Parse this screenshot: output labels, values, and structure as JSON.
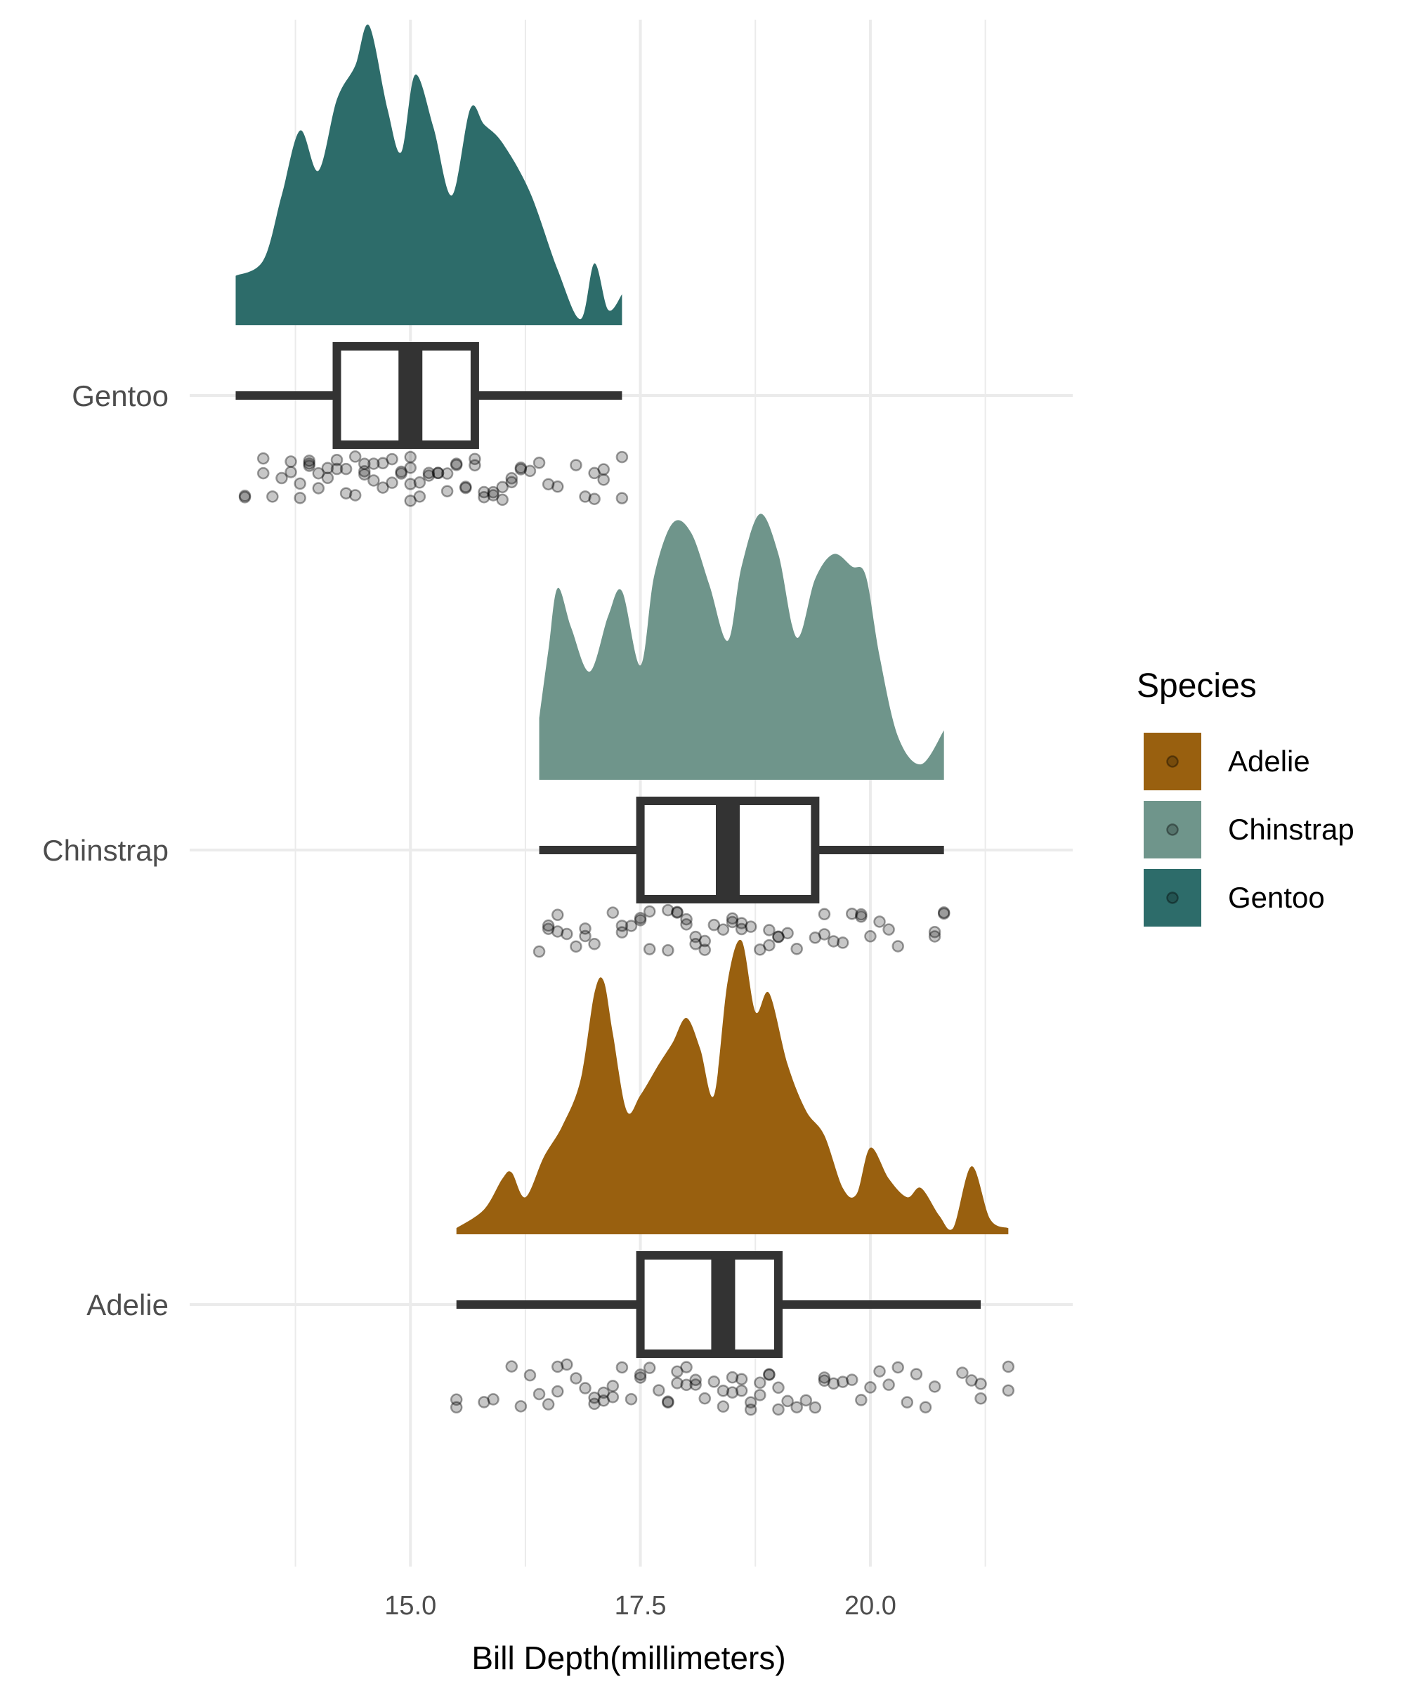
{
  "chart_data": {
    "type": "raincloud",
    "xlabel": "Bill Depth(millimeters)",
    "ylabel": "",
    "xlim": [
      12.6,
      22.2
    ],
    "x_ticks": [
      15.0,
      17.5,
      20.0
    ],
    "x_tick_labels": [
      "15.0",
      "17.5",
      "20.0"
    ],
    "grid": true,
    "legend": {
      "title": "Species",
      "placement": "right",
      "entries": [
        "Adelie",
        "Chinstrap",
        "Gentoo"
      ]
    },
    "colors": {
      "Adelie": "#99600f",
      "Chinstrap": "#6f958b",
      "Gentoo": "#2d6c6a",
      "box": "#333333",
      "grid": "#ebebeb",
      "point": "#000000"
    },
    "categories": [
      "Gentoo",
      "Chinstrap",
      "Adelie"
    ],
    "series": [
      {
        "name": "Gentoo",
        "box": {
          "min": 13.1,
          "q1": 14.2,
          "median": 15.0,
          "q3": 15.7,
          "max": 17.3
        },
        "density": {
          "x": [
            13.1,
            13.4,
            13.6,
            13.8,
            14.0,
            14.2,
            14.4,
            14.55,
            14.75,
            14.9,
            15.05,
            15.25,
            15.45,
            15.65,
            15.8,
            16.0,
            16.3,
            16.6,
            16.85,
            17.0,
            17.15,
            17.3
          ],
          "y": [
            0.16,
            0.21,
            0.42,
            0.63,
            0.5,
            0.73,
            0.84,
            0.97,
            0.7,
            0.56,
            0.81,
            0.64,
            0.42,
            0.7,
            0.65,
            0.59,
            0.43,
            0.18,
            0.02,
            0.2,
            0.05,
            0.1
          ]
        },
        "points": [
          {
            "x": 13.2,
            "y": 13.2
          },
          {
            "x": 13.4,
            "y": 13.4
          },
          {
            "x": 13.5,
            "y": 13.7
          },
          {
            "x": 13.7,
            "y": 13.6
          },
          {
            "x": 13.8,
            "y": 13.9
          },
          {
            "x": 13.9,
            "y": 13.8
          },
          {
            "x": 14.0,
            "y": 13.9
          },
          {
            "x": 14.1,
            "y": 14.1
          },
          {
            "x": 14.2,
            "y": 14.0
          },
          {
            "x": 14.3,
            "y": 14.2
          },
          {
            "x": 14.4,
            "y": 14.4
          },
          {
            "x": 14.5,
            "y": 14.3
          },
          {
            "x": 14.5,
            "y": 14.6
          },
          {
            "x": 14.6,
            "y": 14.5
          },
          {
            "x": 14.7,
            "y": 14.8
          },
          {
            "x": 14.8,
            "y": 14.7
          },
          {
            "x": 14.9,
            "y": 15.0
          },
          {
            "x": 15.0,
            "y": 14.9
          },
          {
            "x": 15.0,
            "y": 15.1
          },
          {
            "x": 15.1,
            "y": 15.0
          },
          {
            "x": 15.2,
            "y": 15.2
          },
          {
            "x": 15.3,
            "y": 15.4
          },
          {
            "x": 15.4,
            "y": 15.3
          },
          {
            "x": 15.5,
            "y": 15.5
          },
          {
            "x": 15.6,
            "y": 15.7
          },
          {
            "x": 15.7,
            "y": 15.6
          },
          {
            "x": 15.8,
            "y": 15.8
          },
          {
            "x": 15.9,
            "y": 15.9
          },
          {
            "x": 16.0,
            "y": 16.1
          },
          {
            "x": 16.1,
            "y": 16.0
          },
          {
            "x": 16.2,
            "y": 16.2
          },
          {
            "x": 16.4,
            "y": 16.3
          },
          {
            "x": 16.5,
            "y": 16.6
          },
          {
            "x": 16.8,
            "y": 16.9
          },
          {
            "x": 17.0,
            "y": 17.1
          },
          {
            "x": 17.1,
            "y": 17.0
          },
          {
            "x": 17.3,
            "y": 17.3
          }
        ]
      },
      {
        "name": "Chinstrap",
        "box": {
          "min": 16.4,
          "q1": 17.5,
          "median": 18.45,
          "q3": 19.4,
          "max": 20.8
        },
        "density": {
          "x": [
            16.4,
            16.5,
            16.6,
            16.75,
            16.95,
            17.15,
            17.3,
            17.5,
            17.65,
            17.85,
            18.05,
            18.25,
            18.45,
            18.6,
            18.8,
            19.0,
            19.2,
            19.4,
            19.6,
            19.8,
            19.95,
            20.1,
            20.3,
            20.55,
            20.8
          ],
          "y": [
            0.2,
            0.42,
            0.62,
            0.49,
            0.35,
            0.53,
            0.61,
            0.37,
            0.66,
            0.83,
            0.8,
            0.63,
            0.45,
            0.69,
            0.86,
            0.73,
            0.46,
            0.65,
            0.73,
            0.69,
            0.66,
            0.4,
            0.14,
            0.05,
            0.16
          ]
        },
        "points": [
          {
            "x": 16.4,
            "y": 16.5
          },
          {
            "x": 16.5,
            "y": 16.6
          },
          {
            "x": 16.6,
            "y": 16.7
          },
          {
            "x": 16.8,
            "y": 16.9
          },
          {
            "x": 17.0,
            "y": 16.9
          },
          {
            "x": 17.2,
            "y": 17.3
          },
          {
            "x": 17.3,
            "y": 17.4
          },
          {
            "x": 17.5,
            "y": 17.6
          },
          {
            "x": 17.6,
            "y": 17.5
          },
          {
            "x": 17.8,
            "y": 17.8
          },
          {
            "x": 17.9,
            "y": 18.0
          },
          {
            "x": 18.0,
            "y": 17.9
          },
          {
            "x": 18.1,
            "y": 18.2
          },
          {
            "x": 18.2,
            "y": 18.1
          },
          {
            "x": 18.4,
            "y": 18.3
          },
          {
            "x": 18.5,
            "y": 18.6
          },
          {
            "x": 18.6,
            "y": 18.5
          },
          {
            "x": 18.8,
            "y": 18.7
          },
          {
            "x": 18.9,
            "y": 19.0
          },
          {
            "x": 19.0,
            "y": 18.9
          },
          {
            "x": 19.2,
            "y": 19.1
          },
          {
            "x": 19.4,
            "y": 19.5
          },
          {
            "x": 19.5,
            "y": 19.6
          },
          {
            "x": 19.7,
            "y": 19.8
          },
          {
            "x": 19.9,
            "y": 19.9
          },
          {
            "x": 20.0,
            "y": 20.1
          },
          {
            "x": 20.3,
            "y": 20.2
          },
          {
            "x": 20.7,
            "y": 20.8
          },
          {
            "x": 20.8,
            "y": 20.7
          }
        ]
      },
      {
        "name": "Adelie",
        "box": {
          "min": 15.5,
          "q1": 17.5,
          "median": 18.4,
          "q3": 19.0,
          "max": 21.2
        },
        "density": {
          "x": [
            15.5,
            15.8,
            16.0,
            16.1,
            16.25,
            16.45,
            16.65,
            16.85,
            17.0,
            17.1,
            17.2,
            17.35,
            17.5,
            17.7,
            17.85,
            18.0,
            18.15,
            18.3,
            18.45,
            18.6,
            18.75,
            18.9,
            19.1,
            19.3,
            19.5,
            19.7,
            19.85,
            20.0,
            20.2,
            20.4,
            20.55,
            20.75,
            20.9,
            21.1,
            21.3,
            21.5
          ],
          "y": [
            0.02,
            0.08,
            0.18,
            0.2,
            0.12,
            0.25,
            0.35,
            0.5,
            0.78,
            0.82,
            0.65,
            0.4,
            0.45,
            0.55,
            0.62,
            0.7,
            0.6,
            0.45,
            0.82,
            0.95,
            0.72,
            0.78,
            0.55,
            0.4,
            0.32,
            0.15,
            0.13,
            0.28,
            0.18,
            0.12,
            0.15,
            0.06,
            0.02,
            0.22,
            0.05,
            0.02
          ]
        },
        "points": [
          {
            "x": 15.5,
            "y": 15.5
          },
          {
            "x": 15.9,
            "y": 15.8
          },
          {
            "x": 16.1,
            "y": 16.2
          },
          {
            "x": 16.3,
            "y": 16.4
          },
          {
            "x": 16.5,
            "y": 16.6
          },
          {
            "x": 16.7,
            "y": 16.6
          },
          {
            "x": 16.8,
            "y": 16.9
          },
          {
            "x": 17.0,
            "y": 17.1
          },
          {
            "x": 17.1,
            "y": 17.0
          },
          {
            "x": 17.2,
            "y": 17.2
          },
          {
            "x": 17.3,
            "y": 17.4
          },
          {
            "x": 17.5,
            "y": 17.5
          },
          {
            "x": 17.6,
            "y": 17.7
          },
          {
            "x": 17.8,
            "y": 17.8
          },
          {
            "x": 17.9,
            "y": 18.0
          },
          {
            "x": 18.0,
            "y": 17.9
          },
          {
            "x": 18.1,
            "y": 18.1
          },
          {
            "x": 18.2,
            "y": 18.3
          },
          {
            "x": 18.4,
            "y": 18.4
          },
          {
            "x": 18.5,
            "y": 18.5
          },
          {
            "x": 18.6,
            "y": 18.6
          },
          {
            "x": 18.7,
            "y": 18.8
          },
          {
            "x": 18.8,
            "y": 18.7
          },
          {
            "x": 18.9,
            "y": 19.0
          },
          {
            "x": 19.0,
            "y": 18.9
          },
          {
            "x": 19.2,
            "y": 19.1
          },
          {
            "x": 19.3,
            "y": 19.4
          },
          {
            "x": 19.5,
            "y": 19.5
          },
          {
            "x": 19.6,
            "y": 19.7
          },
          {
            "x": 19.8,
            "y": 19.9
          },
          {
            "x": 20.0,
            "y": 20.1
          },
          {
            "x": 20.2,
            "y": 20.3
          },
          {
            "x": 20.5,
            "y": 20.4
          },
          {
            "x": 20.7,
            "y": 20.6
          },
          {
            "x": 21.1,
            "y": 21.0
          },
          {
            "x": 21.2,
            "y": 21.2
          },
          {
            "x": 21.5,
            "y": 21.5
          }
        ]
      }
    ]
  }
}
